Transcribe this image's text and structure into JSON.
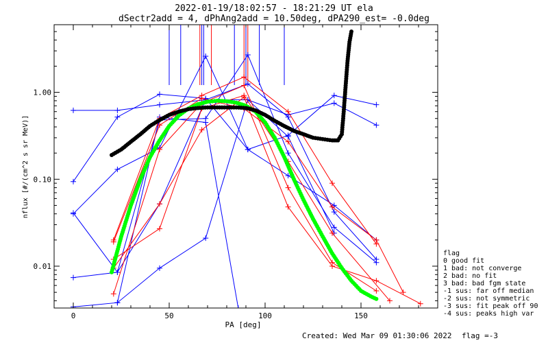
{
  "header": {
    "line1": "2022-01-19/18:02:57 - 18:21:29 UT ela",
    "line2": "dSectr2add = 4, dPhAng2add = 10.50deg, dPA290_est=  -0.0deg"
  },
  "footer": {
    "created": "Created: Wed Mar 09 01:30:06 2022",
    "flag": "flag =-3"
  },
  "legend": {
    "title": "flag",
    "items": [
      " 0 good fit",
      " 1 bad: not converge",
      " 2 bad: no fit",
      " 3 bad: bad fgm state",
      "-1 sus: far off median",
      "-2 sus: not symmetric",
      "-3 sus: fit peak off 90",
      "-4 sus: peaks high var"
    ]
  },
  "colors": {
    "blue": "#0000ff",
    "red": "#ff0000",
    "green": "#00ff00",
    "black": "#000000"
  },
  "chart_data": {
    "type": "line",
    "xlabel": "PA [deg]",
    "ylabel": "nflux [#/(cm^2 s sr MeV)]",
    "xlim": [
      -10,
      190
    ],
    "ylim": [
      0.0033,
      6.0
    ],
    "yscale": "log",
    "xticks": [
      0,
      50,
      100,
      150
    ],
    "xtick_labels": [
      "0",
      "50",
      "100",
      "150"
    ],
    "yticks": [
      0.01,
      0.1,
      1.0
    ],
    "ytick_labels": [
      "0.01",
      "0.10",
      "1.00"
    ],
    "vlines_blue": [
      50,
      56,
      67,
      68,
      84,
      90,
      97,
      110
    ],
    "vlines_red": [
      66,
      72,
      89,
      91
    ],
    "series": [
      {
        "color": "blue",
        "x": [
          0,
          23,
          45,
          69,
          91,
          112,
          136,
          158
        ],
        "y": [
          0.62,
          0.62,
          0.72,
          0.82,
          0.82,
          0.55,
          0.75,
          0.42
        ]
      },
      {
        "color": "blue",
        "x": [
          0,
          23,
          45,
          69,
          91,
          112,
          136,
          158
        ],
        "y": [
          0.094,
          0.52,
          0.95,
          0.85,
          0.22,
          0.32,
          0.92,
          0.72
        ]
      },
      {
        "color": "blue",
        "x": [
          0,
          23,
          45,
          69,
          91,
          112,
          136,
          158
        ],
        "y": [
          0.04,
          0.13,
          0.23,
          2.6,
          0.22,
          0.11,
          0.05,
          0.02
        ]
      },
      {
        "color": "blue",
        "x": [
          0,
          23,
          45,
          69,
          91,
          112,
          136,
          158
        ],
        "y": [
          0.041,
          0.0085,
          0.052,
          0.82,
          1.25,
          0.52,
          0.042,
          0.012
        ]
      },
      {
        "color": "blue",
        "x": [
          0,
          23,
          45,
          69,
          91,
          112,
          136,
          158
        ],
        "y": [
          0.0074,
          0.0085,
          0.48,
          0.5,
          2.7,
          0.2,
          0.028,
          0.011
        ]
      },
      {
        "color": "blue",
        "x": [
          0,
          23,
          45,
          69,
          91,
          112,
          136
        ],
        "y": [
          0.0034,
          0.0038,
          0.0095,
          0.021,
          0.82,
          0.31,
          0.024
        ]
      },
      {
        "color": "blue",
        "x": [
          23,
          45,
          69,
          86
        ],
        "y": [
          0.0038,
          0.52,
          0.45,
          0.0033
        ]
      },
      {
        "color": "red",
        "x": [
          21,
          45,
          67,
          89,
          112,
          135,
          158
        ],
        "y": [
          0.02,
          0.5,
          0.92,
          1.5,
          0.6,
          0.09,
          0.018
        ]
      },
      {
        "color": "red",
        "x": [
          21,
          45,
          67,
          89,
          112,
          135,
          158
        ],
        "y": [
          0.0048,
          0.22,
          0.75,
          1.2,
          0.08,
          0.011,
          0.0052
        ]
      },
      {
        "color": "red",
        "x": [
          21,
          45,
          67,
          89,
          112,
          135,
          158,
          181
        ],
        "y": [
          0.0095,
          0.052,
          0.37,
          0.88,
          0.048,
          0.01,
          0.0068,
          0.0037
        ]
      },
      {
        "color": "red",
        "x": [
          21,
          45,
          67,
          89,
          112,
          135,
          165
        ],
        "y": [
          0.012,
          0.027,
          0.65,
          0.92,
          0.16,
          0.024,
          0.004
        ]
      },
      {
        "color": "red",
        "x": [
          21,
          45,
          67,
          89,
          112,
          135,
          158,
          172
        ],
        "y": [
          0.019,
          0.42,
          0.85,
          0.65,
          0.27,
          0.048,
          0.02,
          0.005
        ]
      }
    ],
    "fit_curves": [
      {
        "color": "green",
        "name": "",
        "x": [
          20,
          25,
          30,
          35,
          40,
          45,
          50,
          55,
          60,
          65,
          70,
          75,
          80,
          85,
          90,
          95,
          100,
          105,
          110,
          115,
          120,
          125,
          130,
          135,
          140,
          145,
          150,
          155,
          158
        ],
        "y": [
          0.0085,
          0.022,
          0.05,
          0.1,
          0.18,
          0.28,
          0.41,
          0.54,
          0.65,
          0.73,
          0.78,
          0.8,
          0.79,
          0.76,
          0.7,
          0.6,
          0.45,
          0.3,
          0.18,
          0.1,
          0.058,
          0.035,
          0.022,
          0.014,
          0.0095,
          0.0068,
          0.0052,
          0.0045,
          0.0042
        ]
      },
      {
        "color": "black",
        "name": "",
        "x": [
          20,
          25,
          30,
          35,
          40,
          45,
          50,
          55,
          60,
          65,
          70,
          75,
          80,
          85,
          90,
          95,
          100,
          105,
          110,
          115,
          120,
          125,
          130,
          135,
          138,
          140,
          141,
          142,
          143,
          144,
          145
        ],
        "y": [
          0.19,
          0.22,
          0.27,
          0.33,
          0.41,
          0.48,
          0.55,
          0.6,
          0.64,
          0.66,
          0.67,
          0.67,
          0.67,
          0.67,
          0.66,
          0.62,
          0.55,
          0.47,
          0.41,
          0.36,
          0.33,
          0.3,
          0.29,
          0.28,
          0.28,
          0.33,
          0.6,
          1.2,
          2.3,
          3.8,
          5.0
        ]
      }
    ]
  }
}
